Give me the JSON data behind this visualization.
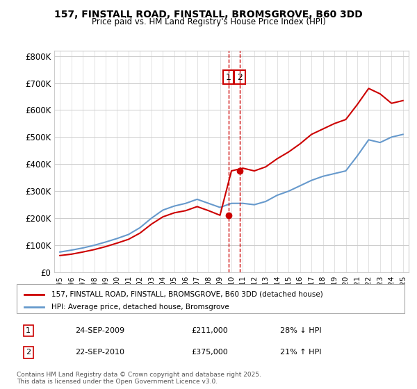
{
  "title": "157, FINSTALL ROAD, FINSTALL, BROMSGROVE, B60 3DD",
  "subtitle": "Price paid vs. HM Land Registry's House Price Index (HPI)",
  "ylabel": "",
  "ylim": [
    0,
    820000
  ],
  "yticks": [
    0,
    100000,
    200000,
    300000,
    400000,
    500000,
    600000,
    700000,
    800000
  ],
  "ytick_labels": [
    "£0",
    "£100K",
    "£200K",
    "£300K",
    "£400K",
    "£500K",
    "£600K",
    "£700K",
    "£800K"
  ],
  "red_color": "#cc0000",
  "blue_color": "#6699cc",
  "annotation_color": "#cc0000",
  "vline_color": "#cc0000",
  "legend1": "157, FINSTALL ROAD, FINSTALL, BROMSGROVE, B60 3DD (detached house)",
  "legend2": "HPI: Average price, detached house, Bromsgrove",
  "transaction1_date": 2009.73,
  "transaction1_price": 211000,
  "transaction1_label": "1",
  "transaction2_date": 2010.73,
  "transaction2_price": 375000,
  "transaction2_label": "2",
  "note1_date": "24-SEP-2009",
  "note1_price": "£211,000",
  "note1_pct": "28% ↓ HPI",
  "note2_date": "22-SEP-2010",
  "note2_price": "£375,000",
  "note2_pct": "21% ↑ HPI",
  "footer": "Contains HM Land Registry data © Crown copyright and database right 2025.\nThis data is licensed under the Open Government Licence v3.0.",
  "hpi_years": [
    1995,
    1996,
    1997,
    1998,
    1999,
    2000,
    2001,
    2002,
    2003,
    2004,
    2005,
    2006,
    2007,
    2008,
    2009,
    2010,
    2011,
    2012,
    2013,
    2014,
    2015,
    2016,
    2017,
    2018,
    2019,
    2020,
    2021,
    2022,
    2023,
    2024,
    2025
  ],
  "hpi_values": [
    75000,
    82000,
    90000,
    100000,
    112000,
    125000,
    140000,
    165000,
    200000,
    230000,
    245000,
    255000,
    270000,
    255000,
    240000,
    255000,
    255000,
    250000,
    262000,
    285000,
    300000,
    320000,
    340000,
    355000,
    365000,
    375000,
    430000,
    490000,
    480000,
    500000,
    510000
  ],
  "red_years": [
    1995,
    1996,
    1997,
    1998,
    1999,
    2000,
    2001,
    2002,
    2003,
    2004,
    2005,
    2006,
    2007,
    2008,
    2009,
    2010,
    2011,
    2012,
    2013,
    2014,
    2015,
    2016,
    2017,
    2018,
    2019,
    2020,
    2021,
    2022,
    2023,
    2024,
    2025
  ],
  "red_values": [
    62000,
    67000,
    75000,
    84000,
    95000,
    108000,
    122000,
    145000,
    178000,
    205000,
    220000,
    228000,
    243000,
    228000,
    211000,
    375000,
    385000,
    375000,
    390000,
    420000,
    445000,
    475000,
    510000,
    530000,
    550000,
    565000,
    620000,
    680000,
    660000,
    625000,
    635000
  ]
}
